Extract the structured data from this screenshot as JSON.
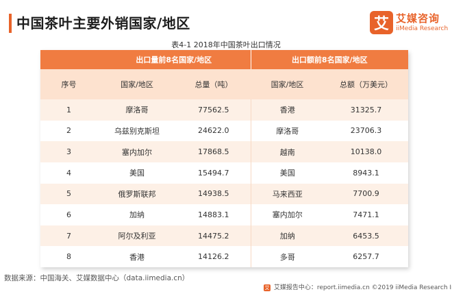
{
  "header": {
    "title": "中国茶叶主要外销国家/地区",
    "logo_mark": "艾",
    "logo_name": "艾媒咨询",
    "logo_sub": "iiMedia Research"
  },
  "caption": "表4-1 2018年中国茶叶出口情况",
  "table": {
    "group_left": "出口量前8名国家/地区",
    "group_right": "出口额前8名国家/地区",
    "columns": [
      "序号",
      "国家/地区",
      "总量（吨）",
      "国家/地区",
      "总额（万美元）"
    ],
    "rows": [
      [
        "1",
        "摩洛哥",
        "77562.5",
        "香港",
        "31325.7"
      ],
      [
        "2",
        "乌兹别克斯坦",
        "24622.0",
        "摩洛哥",
        "23706.3"
      ],
      [
        "3",
        "塞内加尔",
        "17868.5",
        "越南",
        "10138.0"
      ],
      [
        "4",
        "美国",
        "15494.7",
        "美国",
        "8943.1"
      ],
      [
        "5",
        "俄罗斯联邦",
        "14938.5",
        "马来西亚",
        "7700.9"
      ],
      [
        "6",
        "加纳",
        "14883.1",
        "塞内加尔",
        "7471.1"
      ],
      [
        "7",
        "阿尔及利亚",
        "14475.2",
        "加纳",
        "6453.5"
      ],
      [
        "8",
        "香港",
        "14126.2",
        "多哥",
        "6257.7"
      ]
    ]
  },
  "source": "数据来源：中国海关、艾媒数据中心（data.iimedia.cn）",
  "footer": {
    "icon": "艾",
    "text": "艾媒报告中心：report.iimedia.cn  ©2019  iiMedia Research  Inc"
  },
  "colors": {
    "accent": "#e8632a",
    "header_fill": "#f07c41",
    "subheader_fill": "#fde2cf",
    "stripe_fill": "#fdf0e6"
  }
}
